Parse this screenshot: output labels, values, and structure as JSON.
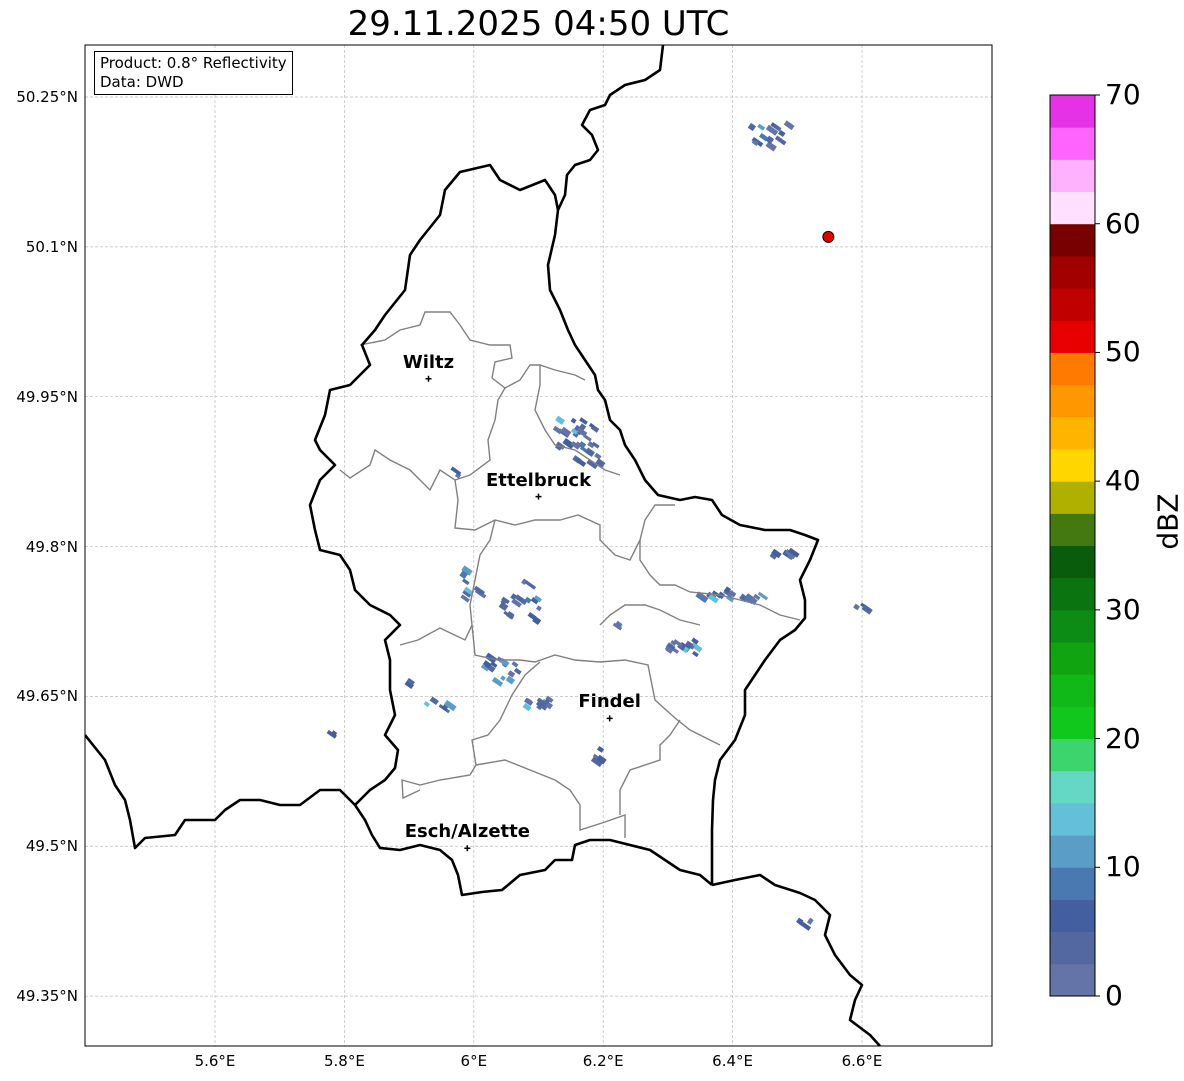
{
  "title": "29.11.2025 04:50 UTC",
  "info": {
    "product": "Product: 0.8° Reflectivity",
    "data": "Data: DWD"
  },
  "axes": {
    "lon_ticks": [
      {
        "value": 5.6,
        "label": "5.6°E"
      },
      {
        "value": 5.8,
        "label": "5.8°E"
      },
      {
        "value": 6.0,
        "label": "6°E"
      },
      {
        "value": 6.2,
        "label": "6.2°E"
      },
      {
        "value": 6.4,
        "label": "6.4°E"
      },
      {
        "value": 6.6,
        "label": "6.6°E"
      }
    ],
    "lat_ticks": [
      {
        "value": 50.25,
        "label": "50.25°N"
      },
      {
        "value": 50.1,
        "label": "50.1°N"
      },
      {
        "value": 49.95,
        "label": "49.95°N"
      },
      {
        "value": 49.8,
        "label": "49.8°N"
      },
      {
        "value": 49.65,
        "label": "49.65°N"
      },
      {
        "value": 49.5,
        "label": "49.5°N"
      },
      {
        "value": 49.35,
        "label": "49.35°N"
      }
    ]
  },
  "cities": [
    {
      "name": "Wiltz",
      "lon": 5.93,
      "lat": 49.968
    },
    {
      "name": "Ettelbruck",
      "lon": 6.1,
      "lat": 49.85
    },
    {
      "name": "Findel",
      "lon": 6.21,
      "lat": 49.628
    },
    {
      "name": "Esch/Alzette",
      "lon": 5.99,
      "lat": 49.498
    }
  ],
  "radar_site": {
    "lon": 6.548,
    "lat": 50.11,
    "color": "#e00000"
  },
  "colorbar": {
    "label": "dBZ",
    "min": 0,
    "max": 70,
    "step": 2.5,
    "ticks": [
      "0",
      "10",
      "20",
      "30",
      "40",
      "50",
      "60",
      "70"
    ],
    "colors": [
      "#6474a6",
      "#5468a0",
      "#435fa0",
      "#4a78b0",
      "#5a9ec8",
      "#64c0d8",
      "#64d8c4",
      "#3cd46c",
      "#10c81c",
      "#10b818",
      "#10a410",
      "#0c8c14",
      "#0a7410",
      "#085c0c",
      "#447810",
      "#b0b000",
      "#ffd700",
      "#ffb400",
      "#ff9800",
      "#ff7a00",
      "#e60000",
      "#c00000",
      "#a00000",
      "#780000",
      "#ffe0ff",
      "#ffb0ff",
      "#ff64ff",
      "#e632e6"
    ]
  }
}
